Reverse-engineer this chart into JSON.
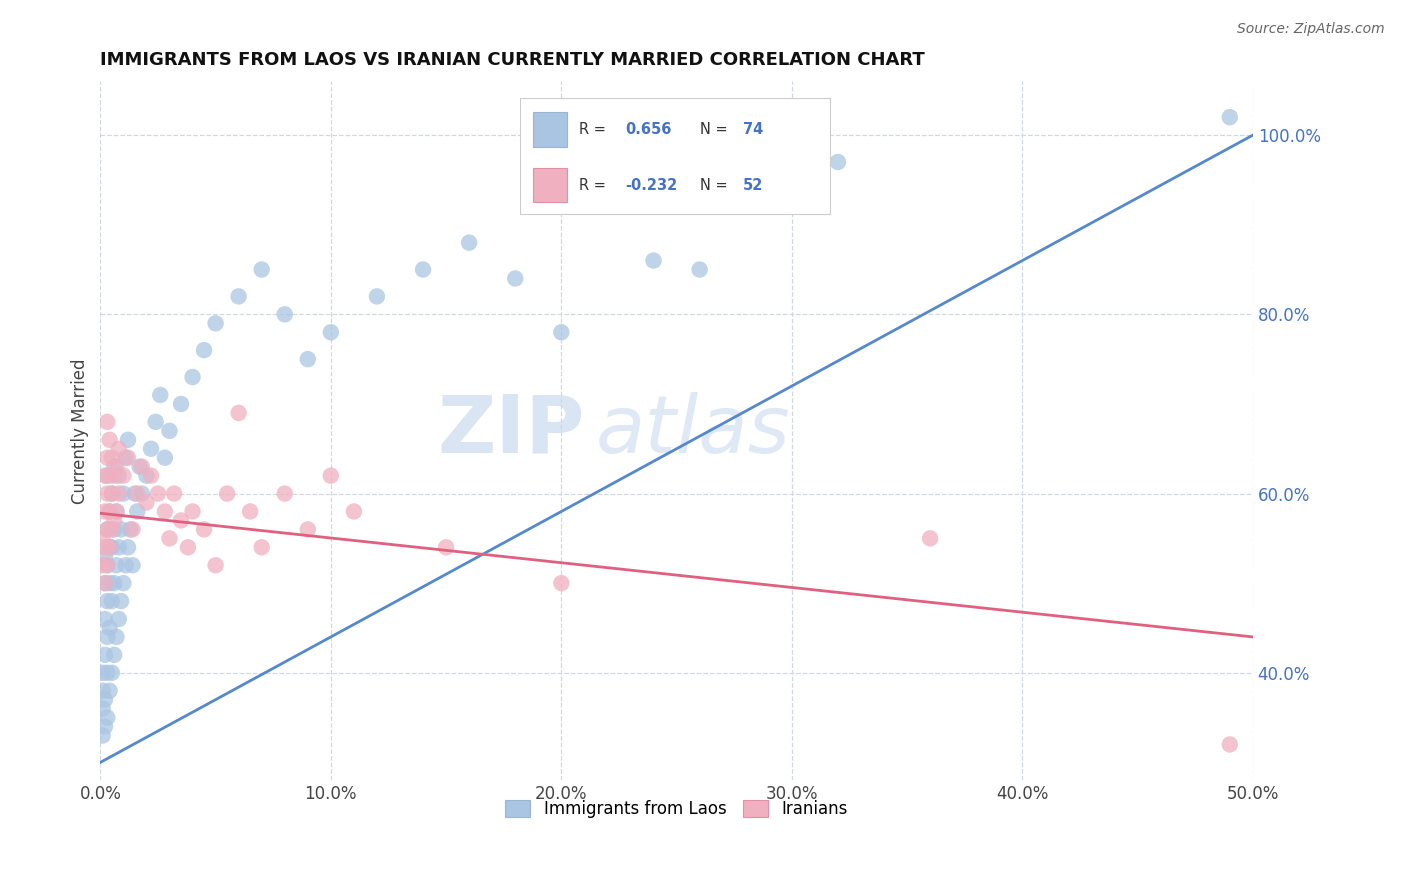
{
  "title": "IMMIGRANTS FROM LAOS VS IRANIAN CURRENTLY MARRIED CORRELATION CHART",
  "source": "Source: ZipAtlas.com",
  "ylabel": "Currently Married",
  "xlim": [
    0.0,
    0.5
  ],
  "ylim": [
    0.28,
    1.06
  ],
  "x_tick_labels": [
    "0.0%",
    "10.0%",
    "20.0%",
    "30.0%",
    "40.0%",
    "50.0%"
  ],
  "x_tick_values": [
    0.0,
    0.1,
    0.2,
    0.3,
    0.4,
    0.5
  ],
  "y_tick_labels": [
    "40.0%",
    "60.0%",
    "80.0%",
    "100.0%"
  ],
  "y_tick_values": [
    0.4,
    0.6,
    0.8,
    1.0
  ],
  "background_color": "#ffffff",
  "grid_color": "#d0d8e0",
  "watermark_text": "ZIP",
  "watermark_text2": "atlas",
  "series": [
    {
      "name": "Immigrants from Laos",
      "R": 0.656,
      "N": 74,
      "color": "#aac5e2",
      "line_color": "#5588cc",
      "line_x0": 0.0,
      "line_y0": 0.3,
      "line_x1": 0.5,
      "line_y1": 1.0,
      "points": [
        [
          0.001,
          0.33
        ],
        [
          0.001,
          0.36
        ],
        [
          0.001,
          0.38
        ],
        [
          0.001,
          0.4
        ],
        [
          0.002,
          0.34
        ],
        [
          0.002,
          0.37
        ],
        [
          0.002,
          0.42
        ],
        [
          0.002,
          0.46
        ],
        [
          0.002,
          0.5
        ],
        [
          0.002,
          0.53
        ],
        [
          0.003,
          0.35
        ],
        [
          0.003,
          0.4
        ],
        [
          0.003,
          0.44
        ],
        [
          0.003,
          0.48
        ],
        [
          0.003,
          0.52
        ],
        [
          0.003,
          0.56
        ],
        [
          0.003,
          0.62
        ],
        [
          0.004,
          0.38
        ],
        [
          0.004,
          0.45
        ],
        [
          0.004,
          0.5
        ],
        [
          0.004,
          0.54
        ],
        [
          0.004,
          0.58
        ],
        [
          0.005,
          0.4
        ],
        [
          0.005,
          0.48
        ],
        [
          0.005,
          0.54
        ],
        [
          0.005,
          0.6
        ],
        [
          0.006,
          0.42
        ],
        [
          0.006,
          0.5
        ],
        [
          0.006,
          0.56
        ],
        [
          0.006,
          0.63
        ],
        [
          0.007,
          0.44
        ],
        [
          0.007,
          0.52
        ],
        [
          0.007,
          0.58
        ],
        [
          0.008,
          0.46
        ],
        [
          0.008,
          0.54
        ],
        [
          0.008,
          0.62
        ],
        [
          0.009,
          0.48
        ],
        [
          0.009,
          0.56
        ],
        [
          0.01,
          0.5
        ],
        [
          0.01,
          0.6
        ],
        [
          0.011,
          0.52
        ],
        [
          0.011,
          0.64
        ],
        [
          0.012,
          0.54
        ],
        [
          0.012,
          0.66
        ],
        [
          0.013,
          0.56
        ],
        [
          0.014,
          0.52
        ],
        [
          0.015,
          0.6
        ],
        [
          0.016,
          0.58
        ],
        [
          0.017,
          0.63
        ],
        [
          0.018,
          0.6
        ],
        [
          0.02,
          0.62
        ],
        [
          0.022,
          0.65
        ],
        [
          0.024,
          0.68
        ],
        [
          0.026,
          0.71
        ],
        [
          0.028,
          0.64
        ],
        [
          0.03,
          0.67
        ],
        [
          0.035,
          0.7
        ],
        [
          0.04,
          0.73
        ],
        [
          0.045,
          0.76
        ],
        [
          0.05,
          0.79
        ],
        [
          0.06,
          0.82
        ],
        [
          0.07,
          0.85
        ],
        [
          0.08,
          0.8
        ],
        [
          0.09,
          0.75
        ],
        [
          0.1,
          0.78
        ],
        [
          0.12,
          0.82
        ],
        [
          0.14,
          0.85
        ],
        [
          0.16,
          0.88
        ],
        [
          0.18,
          0.84
        ],
        [
          0.2,
          0.78
        ],
        [
          0.24,
          0.86
        ],
        [
          0.26,
          0.85
        ],
        [
          0.32,
          0.97
        ],
        [
          0.49,
          1.02
        ]
      ]
    },
    {
      "name": "Iranians",
      "R": -0.232,
      "N": 52,
      "color": "#f0b0c0",
      "line_color": "#e06080",
      "line_x0": 0.0,
      "line_y0": 0.578,
      "line_x1": 0.5,
      "line_y1": 0.44,
      "points": [
        [
          0.001,
          0.52
        ],
        [
          0.001,
          0.55
        ],
        [
          0.002,
          0.5
        ],
        [
          0.002,
          0.54
        ],
        [
          0.002,
          0.58
        ],
        [
          0.002,
          0.62
        ],
        [
          0.003,
          0.52
        ],
        [
          0.003,
          0.56
        ],
        [
          0.003,
          0.6
        ],
        [
          0.003,
          0.64
        ],
        [
          0.003,
          0.68
        ],
        [
          0.004,
          0.54
        ],
        [
          0.004,
          0.58
        ],
        [
          0.004,
          0.62
        ],
        [
          0.004,
          0.66
        ],
        [
          0.005,
          0.56
        ],
        [
          0.005,
          0.6
        ],
        [
          0.005,
          0.64
        ],
        [
          0.006,
          0.57
        ],
        [
          0.006,
          0.62
        ],
        [
          0.007,
          0.58
        ],
        [
          0.007,
          0.63
        ],
        [
          0.008,
          0.6
        ],
        [
          0.008,
          0.65
        ],
        [
          0.01,
          0.62
        ],
        [
          0.012,
          0.64
        ],
        [
          0.014,
          0.56
        ],
        [
          0.016,
          0.6
        ],
        [
          0.018,
          0.63
        ],
        [
          0.02,
          0.59
        ],
        [
          0.022,
          0.62
        ],
        [
          0.025,
          0.6
        ],
        [
          0.028,
          0.58
        ],
        [
          0.03,
          0.55
        ],
        [
          0.032,
          0.6
        ],
        [
          0.035,
          0.57
        ],
        [
          0.038,
          0.54
        ],
        [
          0.04,
          0.58
        ],
        [
          0.045,
          0.56
        ],
        [
          0.05,
          0.52
        ],
        [
          0.055,
          0.6
        ],
        [
          0.06,
          0.69
        ],
        [
          0.065,
          0.58
        ],
        [
          0.07,
          0.54
        ],
        [
          0.08,
          0.6
        ],
        [
          0.09,
          0.56
        ],
        [
          0.1,
          0.62
        ],
        [
          0.11,
          0.58
        ],
        [
          0.15,
          0.54
        ],
        [
          0.2,
          0.5
        ],
        [
          0.36,
          0.55
        ],
        [
          0.49,
          0.32
        ]
      ]
    }
  ]
}
